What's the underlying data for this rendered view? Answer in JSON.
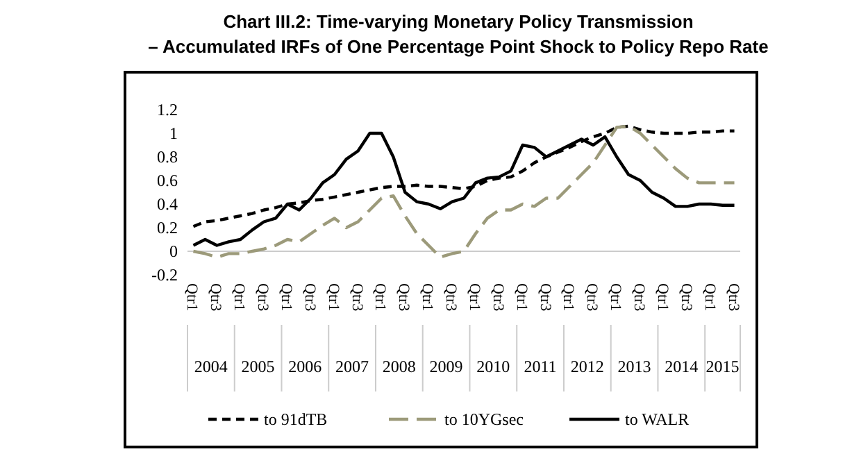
{
  "chart_data": {
    "type": "line",
    "title": "Chart III.2: Time-varying Monetary Policy Transmission",
    "subtitle": "– Accumulated IRFs of One Percentage Point Shock to Policy Repo Rate",
    "categories": [
      "Qtr1",
      null,
      "Qtr3",
      null,
      "Qtr1",
      null,
      "Qtr3",
      null,
      "Qtr1",
      null,
      "Qtr3",
      null,
      "Qtr1",
      null,
      "Qtr3",
      null,
      "Qtr1",
      null,
      "Qtr3",
      null,
      "Qtr1",
      null,
      "Qtr3",
      null,
      "Qtr1",
      null,
      "Qtr3",
      null,
      "Qtr1",
      null,
      "Qtr3",
      null,
      "Qtr1",
      null,
      "Qtr3",
      null,
      "Qtr1",
      null,
      "Qtr3",
      null,
      "Qtr1",
      null,
      "Qtr3",
      null,
      "Qtr1",
      null,
      "Qtr3"
    ],
    "annotations": [
      "2004",
      "2005",
      "2006",
      "2007",
      "2008",
      "2009",
      "2010",
      "2011",
      "2012",
      "2013",
      "2014",
      "2015"
    ],
    "series": [
      {
        "name": "to 91dTB",
        "color": "#000000",
        "line_style": "dashed",
        "values": [
          0.21,
          0.25,
          0.26,
          0.28,
          0.3,
          0.32,
          0.35,
          0.37,
          0.4,
          0.41,
          0.43,
          0.44,
          0.46,
          0.48,
          0.5,
          0.52,
          0.54,
          0.55,
          0.55,
          0.56,
          0.55,
          0.55,
          0.54,
          0.53,
          0.55,
          0.6,
          0.62,
          0.63,
          0.68,
          0.75,
          0.8,
          0.84,
          0.88,
          0.93,
          0.97,
          1.0,
          1.05,
          1.06,
          1.03,
          1.01,
          1.0,
          1.0,
          1.0,
          1.01,
          1.01,
          1.02,
          1.02
        ]
      },
      {
        "name": "to 10YGsec",
        "color": "#9c9a7a",
        "line_style": "dashed",
        "values": [
          0.0,
          -0.02,
          -0.05,
          -0.02,
          -0.02,
          0.0,
          0.02,
          0.05,
          0.1,
          0.08,
          0.15,
          0.22,
          0.28,
          0.2,
          0.25,
          0.35,
          0.45,
          0.47,
          0.3,
          0.15,
          0.05,
          -0.05,
          -0.02,
          0.0,
          0.15,
          0.28,
          0.35,
          0.35,
          0.4,
          0.38,
          0.45,
          0.45,
          0.55,
          0.65,
          0.75,
          0.9,
          1.05,
          1.06,
          1.0,
          0.9,
          0.8,
          0.7,
          0.62,
          0.58,
          0.58,
          0.58,
          0.58
        ]
      },
      {
        "name": "to WALR",
        "color": "#000000",
        "line_style": "solid",
        "values": [
          0.05,
          0.1,
          0.05,
          0.08,
          0.1,
          0.18,
          0.25,
          0.28,
          0.4,
          0.35,
          0.45,
          0.58,
          0.65,
          0.78,
          0.85,
          1.0,
          1.0,
          0.8,
          0.5,
          0.42,
          0.4,
          0.36,
          0.42,
          0.45,
          0.58,
          0.62,
          0.63,
          0.68,
          0.9,
          0.88,
          0.8,
          0.85,
          0.9,
          0.95,
          0.9,
          0.97,
          0.8,
          0.65,
          0.6,
          0.5,
          0.45,
          0.38,
          0.38,
          0.4,
          0.4,
          0.39,
          0.39
        ]
      }
    ],
    "ylim": [
      -0.2,
      1.2
    ],
    "yticks": [
      -0.2,
      0,
      0.2,
      0.4,
      0.6,
      0.8,
      1,
      1.2
    ],
    "legend": "bottom",
    "grid": false
  }
}
